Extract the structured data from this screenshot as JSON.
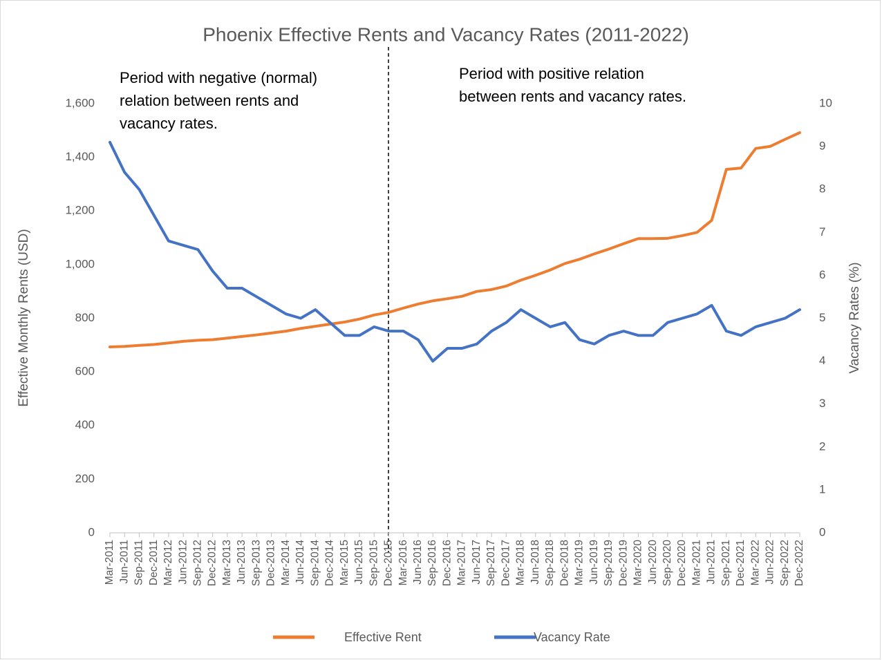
{
  "chart_data": {
    "type": "line",
    "title": "Phoenix Effective Rents and Vacancy Rates (2011-2022)",
    "y_label": "Effective Monthly Rents (USD)",
    "y2_label": "Vacancy Rates (%)",
    "annotations": [
      {
        "lines": [
          "Period with negative (normal)",
          "relation between rents and",
          "vacancy rates."
        ]
      },
      {
        "lines": [
          "Period with positive relation",
          "between rents and vacancy rates."
        ]
      }
    ],
    "categories": [
      "Mar-2011",
      "Jun-2011",
      "Sep-2011",
      "Dec-2011",
      "Mar-2012",
      "Jun-2012",
      "Sep-2012",
      "Dec-2012",
      "Mar-2013",
      "Jun-2013",
      "Sep-2013",
      "Dec-2013",
      "Mar-2014",
      "Jun-2014",
      "Sep-2014",
      "Dec-2014",
      "Mar-2015",
      "Jun-2015",
      "Sep-2015",
      "Dec-2015",
      "Mar-2016",
      "Jun-2016",
      "Sep-2016",
      "Dec-2016",
      "Mar-2017",
      "Jun-2017",
      "Sep-2017",
      "Dec-2017",
      "Mar-2018",
      "Jun-2018",
      "Sep-2018",
      "Dec-2018",
      "Mar-2019",
      "Jun-2019",
      "Sep-2019",
      "Dec-2019",
      "Mar-2020",
      "Jun-2020",
      "Sep-2020",
      "Dec-2020",
      "Mar-2021",
      "Jun-2021",
      "Sep-2021",
      "Dec-2021",
      "Mar-2022",
      "Jun-2022",
      "Sep-2022",
      "Dec-2022"
    ],
    "series": [
      {
        "name": "Effective Rent",
        "color": "#ed7d31",
        "axis": "y",
        "values": [
          693,
          695,
          699,
          702,
          708,
          714,
          718,
          720,
          726,
          732,
          738,
          745,
          752,
          762,
          770,
          778,
          786,
          797,
          812,
          822,
          838,
          853,
          865,
          873,
          882,
          900,
          907,
          920,
          942,
          960,
          980,
          1004,
          1020,
          1040,
          1058,
          1078,
          1097,
          1097,
          1098,
          1108,
          1120,
          1165,
          1355,
          1360,
          1433,
          1441,
          1467,
          1492
        ]
      },
      {
        "name": "Vacancy Rate",
        "color": "#4472c4",
        "axis": "y2",
        "values": [
          9.1,
          8.4,
          8.0,
          7.4,
          6.8,
          6.7,
          6.6,
          6.1,
          5.7,
          5.7,
          5.5,
          5.3,
          5.1,
          5.0,
          5.2,
          4.9,
          4.6,
          4.6,
          4.8,
          4.7,
          4.7,
          4.5,
          4.0,
          4.3,
          4.3,
          4.4,
          4.7,
          4.9,
          5.2,
          5.0,
          4.8,
          4.9,
          4.5,
          4.4,
          4.6,
          4.7,
          4.6,
          4.6,
          4.9,
          5.0,
          5.1,
          5.3,
          4.7,
          4.6,
          4.8,
          4.9,
          5.0,
          5.2
        ]
      }
    ],
    "ylim": [
      0,
      1600
    ],
    "yticks": [
      0,
      200,
      400,
      600,
      800,
      {
        "value": 1000,
        "label": "1,000"
      },
      {
        "value": 1200,
        "label": "1,200"
      },
      {
        "value": 1400,
        "label": "1,400"
      },
      {
        "value": 1600,
        "label": "1,600"
      }
    ],
    "y2lim": [
      0,
      10
    ],
    "y2ticks": [
      0,
      1,
      2,
      3,
      4,
      5,
      6,
      7,
      8,
      9,
      10
    ],
    "grid": false,
    "legend": "bottom"
  }
}
